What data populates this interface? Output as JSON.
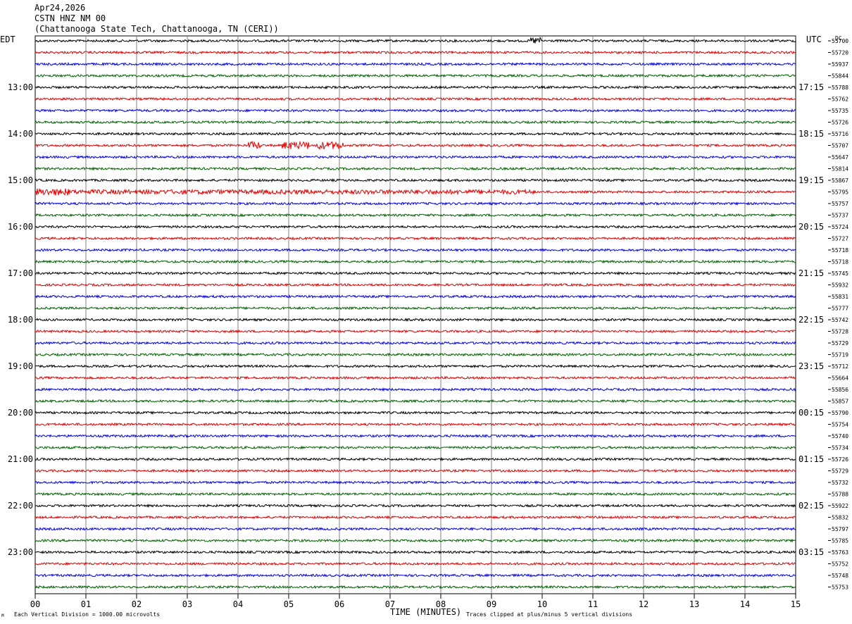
{
  "header": {
    "date": "Apr24,2026",
    "station": "CSTN HNZ NM 00",
    "location": "(Chattanooga State Tech, Chattanooga, TN (CERI))"
  },
  "labels": {
    "left_tz": "EDT",
    "right_tz": "UTC",
    "dc_label": "DC",
    "xlabel": "TIME (MINUTES)",
    "footer_left": "Each Vertical Division = 1000.00 microvolts",
    "footer_right": "Traces clipped at plus/minus 5 vertical divisions",
    "corner_mark": "M"
  },
  "chart_data": {
    "type": "line",
    "title": "CSTN HNZ NM 00",
    "xlabel": "TIME (MINUTES)",
    "xlim": [
      0,
      15
    ],
    "x_ticks": [
      "00",
      "01",
      "02",
      "03",
      "04",
      "05",
      "06",
      "07",
      "08",
      "09",
      "10",
      "11",
      "12",
      "13",
      "14",
      "15"
    ],
    "grid": "vertical lines each minute",
    "trace_colors": [
      "#000000",
      "#e00000",
      "#0000e0",
      "#006000"
    ],
    "left_hour_labels": [
      "13:00",
      "14:00",
      "15:00",
      "16:00",
      "17:00",
      "18:00",
      "19:00",
      "20:00",
      "21:00",
      "22:00",
      "23:00"
    ],
    "right_hour_labels": [
      "17:15",
      "18:15",
      "19:15",
      "20:15",
      "21:15",
      "22:15",
      "23:15",
      "00:15",
      "01:15",
      "02:15",
      "03:15"
    ],
    "dc_offsets": [
      "55700",
      "55720",
      "55937",
      "55844",
      "55788",
      "55762",
      "55735",
      "55726",
      "55716",
      "55707",
      "55647",
      "55814",
      "55867",
      "55795",
      "55757",
      "55737",
      "55724",
      "55727",
      "55718",
      "55718",
      "55745",
      "55932",
      "55831",
      "55777",
      "55742",
      "55728",
      "55729",
      "55719",
      "55712",
      "55664",
      "55856",
      "55857",
      "55790",
      "55754",
      "55740",
      "55734",
      "55726",
      "55729",
      "55732",
      "55788",
      "55922",
      "55832",
      "55797",
      "55785",
      "55763",
      "55752",
      "55748",
      "55753"
    ]
  }
}
